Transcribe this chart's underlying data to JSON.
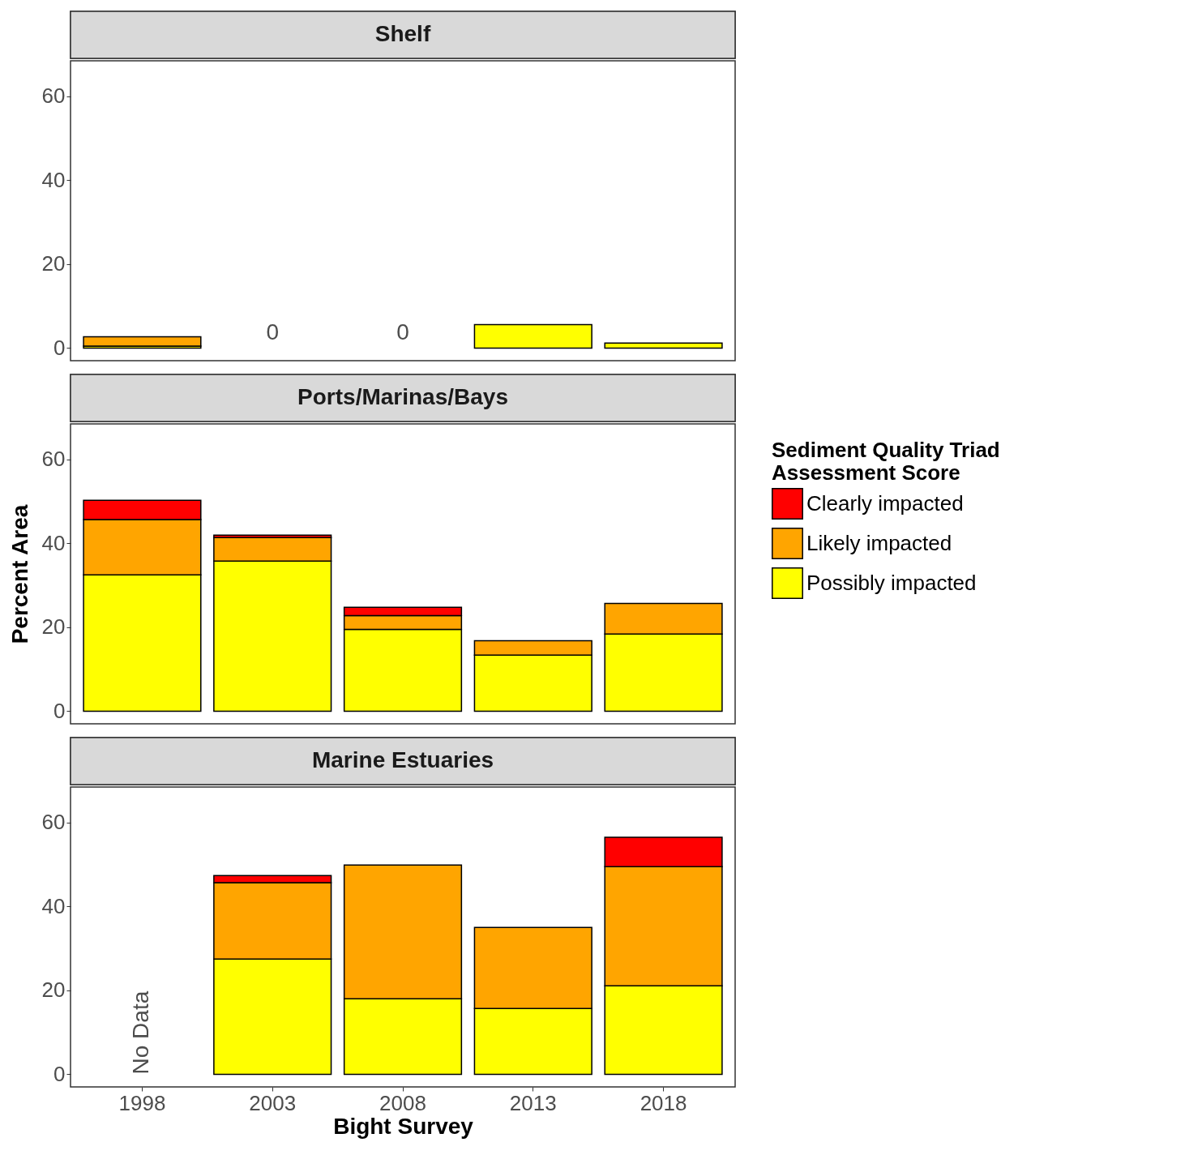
{
  "chart_data": [
    {
      "type": "bar",
      "title": "Shelf",
      "categories": [
        "1998",
        "2003",
        "2008",
        "2013",
        "2018"
      ],
      "stacked": true,
      "ylim": [
        -3,
        68.5
      ],
      "yticks": [
        0,
        20,
        40,
        60
      ],
      "grid": false,
      "tick_labels": "y",
      "series": [
        {
          "color": "#ffff00",
          "values": [
            0.5,
            0,
            0,
            5.6,
            1.2
          ],
          "value_labels": [
            null,
            "0",
            "0",
            null,
            null
          ]
        },
        {
          "color": "#ffa500",
          "values": [
            2.2,
            null,
            null,
            null,
            null
          ]
        },
        {
          "color": "#ff0000",
          "values": [
            null,
            null,
            null,
            null,
            null
          ]
        }
      ]
    },
    {
      "type": "bar",
      "title": "Ports/Marinas/Bays",
      "categories": [
        "1998",
        "2003",
        "2008",
        "2013",
        "2018"
      ],
      "stacked": true,
      "ylim": [
        -3,
        68.5
      ],
      "yticks": [
        0,
        20,
        40,
        60
      ],
      "grid": false,
      "tick_labels": "y",
      "ylabel": "Percent Area",
      "legend": "right",
      "legend_title": "Sediment Quality Triad\nAssessment Score",
      "series": [
        {
          "name": "Possibly impacted",
          "color": "#ffff00",
          "values": [
            32.5,
            35.8,
            19.5,
            13.4,
            18.4
          ]
        },
        {
          "name": "Likely impacted",
          "color": "#ffa500",
          "values": [
            13.2,
            5.6,
            3.3,
            3.4,
            7.3
          ]
        },
        {
          "name": "Clearly impacted",
          "color": "#ff0000",
          "values": [
            4.6,
            0.6,
            2.0,
            null,
            null
          ]
        }
      ]
    },
    {
      "type": "bar",
      "title": "Marine Estuaries",
      "categories": [
        "1998",
        "2003",
        "2008",
        "2013",
        "2018"
      ],
      "stacked": true,
      "ylim": [
        -3,
        68.5
      ],
      "yticks": [
        0,
        20,
        40,
        60
      ],
      "grid": false,
      "xlabel": "Bight Survey",
      "series": [
        {
          "color": "#ffff00",
          "values": [
            null,
            27.5,
            18.0,
            15.7,
            21.1
          ]
        },
        {
          "color": "#ffa500",
          "values": [
            null,
            18.2,
            31.9,
            19.3,
            28.4
          ]
        },
        {
          "color": "#ff0000",
          "values": [
            null,
            1.7,
            null,
            null,
            7.0
          ]
        }
      ],
      "annotations": [
        "No Data"
      ]
    }
  ]
}
